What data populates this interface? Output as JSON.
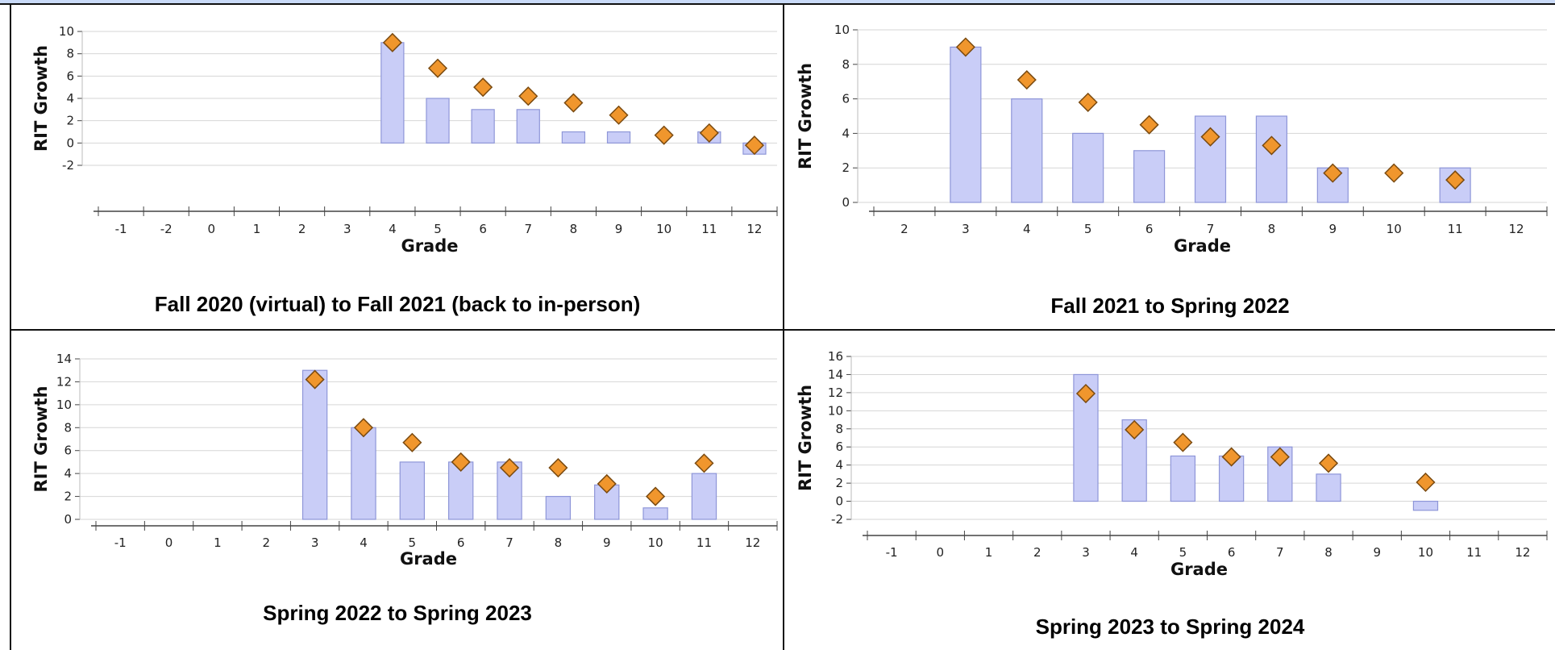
{
  "chart_data": [
    {
      "type": "bar",
      "caption": "Fall 2020 (virtual) to Fall 2021 (back to in-person)",
      "xlabel": "Grade",
      "ylabel": "RIT Growth",
      "categories": [
        "-1",
        "-2",
        "0",
        "1",
        "2",
        "3",
        "4",
        "5",
        "6",
        "7",
        "8",
        "9",
        "10",
        "11",
        "12"
      ],
      "ylim": [
        -2,
        10
      ],
      "yticks": [
        -2,
        0,
        2,
        4,
        6,
        8,
        10
      ],
      "series": [
        {
          "kind": "bar",
          "values": [
            null,
            null,
            null,
            null,
            null,
            null,
            9,
            4,
            3,
            3,
            1,
            1,
            null,
            1,
            -1
          ]
        },
        {
          "kind": "marker",
          "values": [
            null,
            null,
            null,
            null,
            null,
            null,
            9,
            6.7,
            5,
            4.2,
            3.6,
            2.5,
            0.7,
            0.9,
            -0.2
          ]
        }
      ],
      "grid": true
    },
    {
      "type": "bar",
      "caption": "Fall 2021 to Spring 2022",
      "xlabel": "Grade",
      "ylabel": "RIT Growth",
      "categories": [
        "2",
        "3",
        "4",
        "5",
        "6",
        "7",
        "8",
        "9",
        "10",
        "11",
        "12"
      ],
      "ylim": [
        0,
        10
      ],
      "yticks": [
        0,
        2,
        4,
        6,
        8,
        10
      ],
      "series": [
        {
          "kind": "bar",
          "values": [
            null,
            9,
            6,
            4,
            3,
            5,
            5,
            2,
            null,
            2,
            null
          ]
        },
        {
          "kind": "marker",
          "values": [
            null,
            9,
            7.1,
            5.8,
            4.5,
            3.8,
            3.3,
            1.7,
            1.7,
            1.3,
            null
          ]
        }
      ],
      "grid": true
    },
    {
      "type": "bar",
      "caption": "Spring 2022 to Spring 2023",
      "xlabel": "Grade",
      "ylabel": "RIT Growth",
      "categories": [
        "-1",
        "0",
        "1",
        "2",
        "3",
        "4",
        "5",
        "6",
        "7",
        "8",
        "9",
        "10",
        "11",
        "12"
      ],
      "ylim": [
        0,
        14
      ],
      "yticks": [
        0,
        2,
        4,
        6,
        8,
        10,
        12,
        14
      ],
      "series": [
        {
          "kind": "bar",
          "values": [
            null,
            null,
            null,
            null,
            13,
            8,
            5,
            5,
            5,
            2,
            3,
            1,
            4,
            null
          ]
        },
        {
          "kind": "marker",
          "values": [
            null,
            null,
            null,
            null,
            12.2,
            8,
            6.7,
            5,
            4.5,
            4.5,
            3.1,
            2,
            4.9,
            null
          ]
        }
      ],
      "grid": true
    },
    {
      "type": "bar",
      "caption": "Spring 2023 to Spring 2024",
      "xlabel": "Grade",
      "ylabel": "RIT Growth",
      "categories": [
        "-1",
        "0",
        "1",
        "2",
        "3",
        "4",
        "5",
        "6",
        "7",
        "8",
        "9",
        "10",
        "11",
        "12"
      ],
      "ylim": [
        -2,
        16
      ],
      "yticks": [
        -2,
        0,
        2,
        4,
        6,
        8,
        10,
        12,
        14,
        16
      ],
      "series": [
        {
          "kind": "bar",
          "values": [
            null,
            null,
            null,
            null,
            14,
            9,
            5,
            5,
            6,
            3,
            null,
            -1,
            null,
            null
          ]
        },
        {
          "kind": "marker",
          "values": [
            null,
            null,
            null,
            null,
            11.9,
            7.9,
            6.5,
            4.9,
            4.9,
            4.2,
            null,
            2.1,
            null,
            null
          ]
        }
      ],
      "grid": true
    }
  ],
  "colors": {
    "bar_fill": "#c9cdf7",
    "bar_stroke": "#8e96d8",
    "marker_fill": "#f0962d",
    "marker_stroke": "#7a4a10",
    "grid": "#d6d6d6",
    "axis": "#444444",
    "top_band": "#c9daf8"
  },
  "marker_shape": "diamond"
}
